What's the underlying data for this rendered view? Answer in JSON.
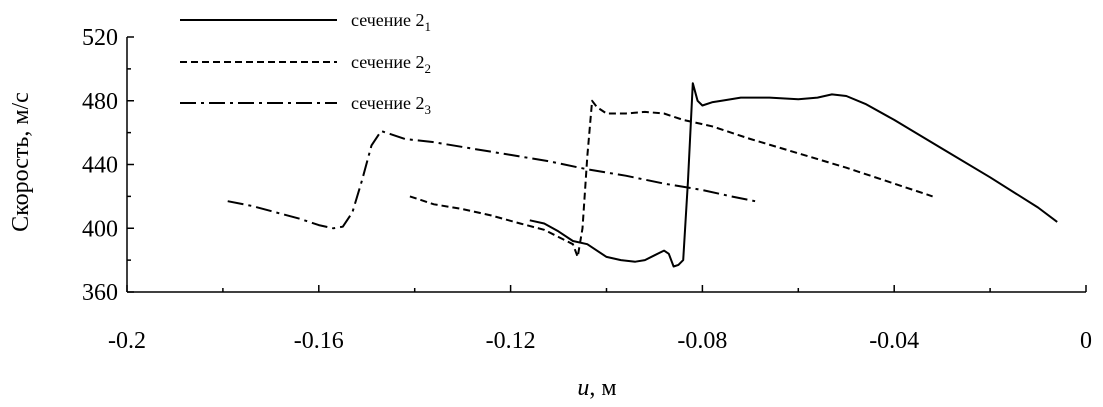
{
  "chart_data": {
    "type": "line",
    "xlabel_var": "u",
    "xlabel_rest": ", м",
    "ylabel": "Скорость, м/с",
    "xlim": [
      -0.2,
      0
    ],
    "ylim": [
      360,
      520
    ],
    "xticks": [
      -0.2,
      -0.16,
      -0.12,
      -0.08,
      -0.04,
      0
    ],
    "xtick_labels": [
      "-0.2",
      "-0.16",
      "-0.12",
      "-0.08",
      "-0.04",
      "0"
    ],
    "yticks": [
      360,
      400,
      440,
      480,
      520
    ],
    "ytick_labels": [
      "360",
      "400",
      "440",
      "480",
      "520"
    ],
    "grid": false,
    "legend_position": "top-left",
    "series": [
      {
        "name_main": "сечение 2",
        "name_sub": "1",
        "dash": "solid",
        "points": [
          [
            -0.116,
            405
          ],
          [
            -0.113,
            403
          ],
          [
            -0.11,
            398
          ],
          [
            -0.107,
            392
          ],
          [
            -0.104,
            390
          ],
          [
            -0.102,
            386
          ],
          [
            -0.1,
            382
          ],
          [
            -0.097,
            380
          ],
          [
            -0.094,
            379
          ],
          [
            -0.092,
            380
          ],
          [
            -0.09,
            383
          ],
          [
            -0.088,
            386
          ],
          [
            -0.087,
            384
          ],
          [
            -0.086,
            376
          ],
          [
            -0.085,
            377
          ],
          [
            -0.084,
            380
          ],
          [
            -0.083,
            430
          ],
          [
            -0.082,
            491
          ],
          [
            -0.081,
            480
          ],
          [
            -0.08,
            477
          ],
          [
            -0.078,
            479
          ],
          [
            -0.076,
            480
          ],
          [
            -0.072,
            482
          ],
          [
            -0.066,
            482
          ],
          [
            -0.06,
            481
          ],
          [
            -0.056,
            482
          ],
          [
            -0.053,
            484
          ],
          [
            -0.05,
            483
          ],
          [
            -0.046,
            478
          ],
          [
            -0.04,
            468
          ],
          [
            -0.03,
            450
          ],
          [
            -0.02,
            432
          ],
          [
            -0.01,
            413
          ],
          [
            -0.006,
            404
          ]
        ]
      },
      {
        "name_main": "сечение 2",
        "name_sub": "2",
        "dash": "dashed",
        "points": [
          [
            -0.141,
            420
          ],
          [
            -0.136,
            415
          ],
          [
            -0.13,
            412
          ],
          [
            -0.124,
            408
          ],
          [
            -0.118,
            403
          ],
          [
            -0.113,
            399
          ],
          [
            -0.109,
            393
          ],
          [
            -0.107,
            390
          ],
          [
            -0.106,
            382
          ],
          [
            -0.105,
            400
          ],
          [
            -0.104,
            445
          ],
          [
            -0.103,
            480
          ],
          [
            -0.102,
            476
          ],
          [
            -0.1,
            472
          ],
          [
            -0.096,
            472
          ],
          [
            -0.092,
            473
          ],
          [
            -0.088,
            472
          ],
          [
            -0.084,
            468
          ],
          [
            -0.078,
            464
          ],
          [
            -0.07,
            456
          ],
          [
            -0.06,
            447
          ],
          [
            -0.05,
            438
          ],
          [
            -0.04,
            428
          ],
          [
            -0.032,
            420
          ]
        ]
      },
      {
        "name_main": "сечение 2",
        "name_sub": "3",
        "dash": "dashdot",
        "points": [
          [
            -0.179,
            417
          ],
          [
            -0.174,
            414
          ],
          [
            -0.169,
            410
          ],
          [
            -0.164,
            406
          ],
          [
            -0.16,
            402
          ],
          [
            -0.157,
            400
          ],
          [
            -0.155,
            401
          ],
          [
            -0.153,
            410
          ],
          [
            -0.151,
            430
          ],
          [
            -0.149,
            452
          ],
          [
            -0.147,
            461
          ],
          [
            -0.145,
            459
          ],
          [
            -0.142,
            456
          ],
          [
            -0.136,
            454
          ],
          [
            -0.128,
            450
          ],
          [
            -0.12,
            446
          ],
          [
            -0.112,
            442
          ],
          [
            -0.104,
            437
          ],
          [
            -0.096,
            433
          ],
          [
            -0.088,
            428
          ],
          [
            -0.08,
            424
          ],
          [
            -0.074,
            420
          ],
          [
            -0.069,
            417
          ]
        ]
      }
    ]
  }
}
